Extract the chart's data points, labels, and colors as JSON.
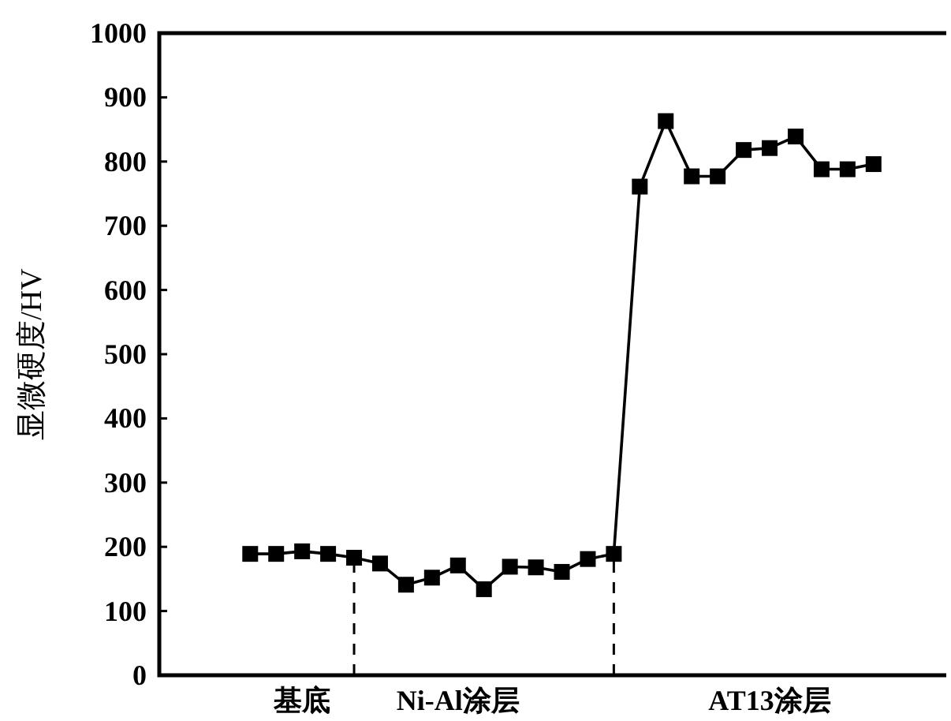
{
  "chart_data": {
    "type": "line",
    "ylabel": "显微硬度/HV",
    "categories": [
      null,
      null,
      "基底",
      null,
      null,
      null,
      null,
      null,
      "Ni-Al涂层",
      null,
      null,
      null,
      null,
      null,
      null,
      null,
      null,
      null,
      null,
      null,
      "AT13涂层",
      null,
      null,
      null,
      null
    ],
    "series": [
      {
        "color": "#000000",
        "values": [
          189,
          189,
          193,
          189,
          183,
          174,
          141,
          152,
          171,
          134,
          169,
          168,
          161,
          181,
          189,
          761,
          863,
          777,
          777,
          818,
          821,
          839,
          788,
          788,
          796
        ]
      }
    ],
    "ylim": [
      0,
      1000
    ],
    "yticks": [
      0,
      100,
      200,
      300,
      400,
      500,
      600,
      700,
      800,
      900,
      1000
    ],
    "marker": "square",
    "line_style": "solid",
    "grid": false
  }
}
